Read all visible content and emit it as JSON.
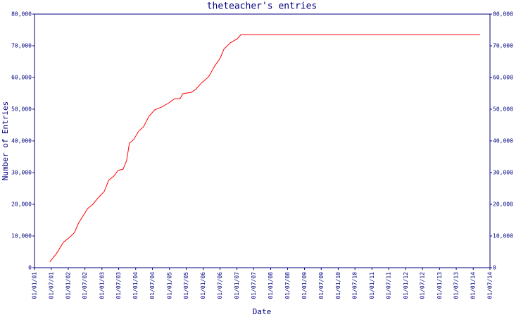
{
  "chart_data": {
    "type": "line",
    "title": "theteacher's entries",
    "xlabel": "Date",
    "ylabel": "Number of Entries",
    "series": [
      {
        "name": "entries",
        "color": "#ff0000",
        "x": [
          "2001-06-15",
          "2001-08-25",
          "2001-11-10",
          "2002-01-25",
          "2002-03-10",
          "2002-04-25",
          "2002-08-01",
          "2002-09-25",
          "2002-11-25",
          "2003-01-25",
          "2003-03-15",
          "2003-05-10",
          "2003-06-25",
          "2003-08-18",
          "2003-09-25",
          "2003-10-25",
          "2003-12-10",
          "2004-02-03",
          "2004-03-25",
          "2004-05-25",
          "2004-07-25",
          "2004-10-10",
          "2004-12-25",
          "2005-02-25",
          "2005-04-25",
          "2005-05-25",
          "2005-08-25",
          "2005-10-10",
          "2005-12-18",
          "2006-02-28",
          "2006-05-05",
          "2006-07-05",
          "2006-08-12",
          "2006-10-20",
          "2007-01-05",
          "2007-02-12",
          "2014-03-15"
        ],
        "values": [
          1800,
          4400,
          8000,
          9800,
          11100,
          14200,
          18700,
          20000,
          22200,
          24000,
          27600,
          28900,
          30700,
          31100,
          33800,
          39300,
          40400,
          43100,
          44400,
          47800,
          49800,
          50700,
          52000,
          53300,
          53300,
          54900,
          55300,
          56200,
          58400,
          60200,
          63600,
          66200,
          68900,
          70900,
          72200,
          73500,
          73500
        ]
      }
    ],
    "xlim": [
      "2001-01-01",
      "2014-07-01"
    ],
    "xticks": [
      {
        "value": "2001-01-01",
        "label": "01/01/01"
      },
      {
        "value": "2001-07-01",
        "label": "01/07/01"
      },
      {
        "value": "2002-01-01",
        "label": "01/01/02"
      },
      {
        "value": "2002-07-01",
        "label": "01/07/02"
      },
      {
        "value": "2003-01-01",
        "label": "01/01/03"
      },
      {
        "value": "2003-07-01",
        "label": "01/07/03"
      },
      {
        "value": "2004-01-01",
        "label": "01/01/04"
      },
      {
        "value": "2004-07-01",
        "label": "01/07/04"
      },
      {
        "value": "2005-01-01",
        "label": "01/01/05"
      },
      {
        "value": "2005-07-01",
        "label": "01/07/05"
      },
      {
        "value": "2006-01-01",
        "label": "01/01/06"
      },
      {
        "value": "2006-07-01",
        "label": "01/07/06"
      },
      {
        "value": "2007-01-01",
        "label": "01/01/07"
      },
      {
        "value": "2007-07-01",
        "label": "01/07/07"
      },
      {
        "value": "2008-01-01",
        "label": "01/01/08"
      },
      {
        "value": "2008-07-01",
        "label": "01/07/08"
      },
      {
        "value": "2009-01-01",
        "label": "01/01/09"
      },
      {
        "value": "2009-07-01",
        "label": "01/07/09"
      },
      {
        "value": "2010-01-01",
        "label": "01/01/10"
      },
      {
        "value": "2010-07-01",
        "label": "01/07/10"
      },
      {
        "value": "2011-01-01",
        "label": "01/01/11"
      },
      {
        "value": "2011-07-01",
        "label": "01/07/11"
      },
      {
        "value": "2012-01-01",
        "label": "01/01/12"
      },
      {
        "value": "2012-07-01",
        "label": "01/07/12"
      },
      {
        "value": "2013-01-01",
        "label": "01/01/13"
      },
      {
        "value": "2013-07-01",
        "label": "01/07/13"
      },
      {
        "value": "2014-01-01",
        "label": "01/01/14"
      },
      {
        "value": "2014-07-01",
        "label": "01/07/14"
      }
    ],
    "ylim": [
      0,
      80000
    ],
    "yticks": [
      0,
      {
        "value": 10000,
        "label": "10,000"
      },
      {
        "value": 20000,
        "label": "20,000"
      },
      {
        "value": 30000,
        "label": "30,000"
      },
      {
        "value": 40000,
        "label": "40,000"
      },
      {
        "value": 50000,
        "label": "50,000"
      },
      {
        "value": 60000,
        "label": "60,000"
      },
      {
        "value": 70000,
        "label": "70,000"
      },
      {
        "value": 80000,
        "label": "80,000"
      }
    ],
    "y2lim": [
      0,
      80000
    ],
    "y2ticks": [
      0,
      {
        "value": 10000,
        "label": "10,000"
      },
      {
        "value": 20000,
        "label": "20,000"
      },
      {
        "value": 30000,
        "label": "30,000"
      },
      {
        "value": 40000,
        "label": "40,000"
      },
      {
        "value": 50000,
        "label": "50,000"
      },
      {
        "value": 60000,
        "label": "60,000"
      },
      {
        "value": 70000,
        "label": "70,000"
      },
      {
        "value": 80000,
        "label": "80,000"
      }
    ],
    "axis_color": "#000080"
  }
}
